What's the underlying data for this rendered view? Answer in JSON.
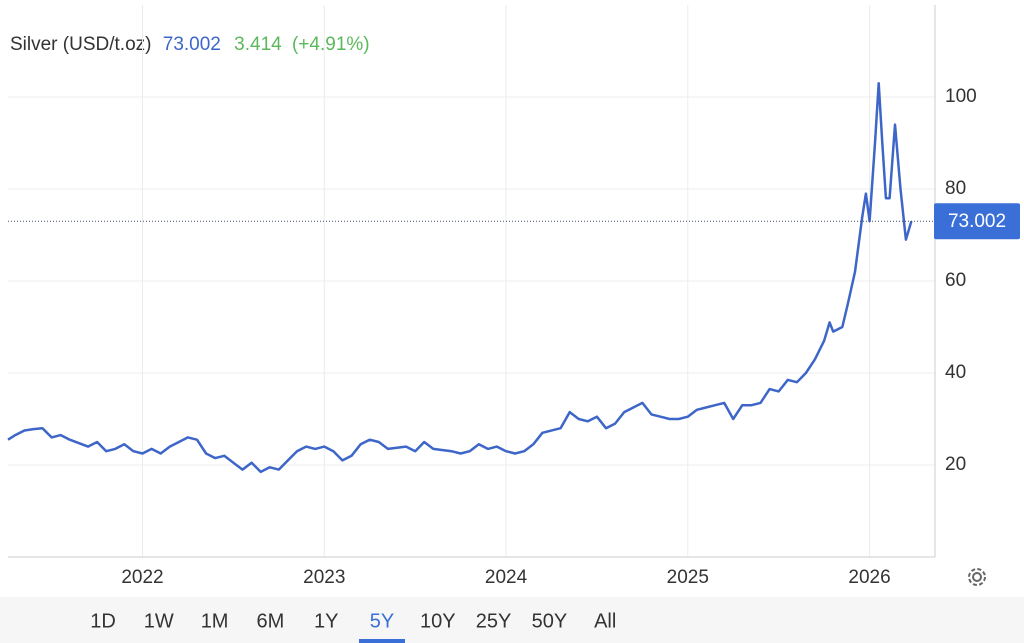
{
  "chart_data": {
    "type": "line",
    "title": "Silver (USD/t.oz)",
    "price": 73.002,
    "change": 3.414,
    "change_pct": "(+4.91%)",
    "color": "#3d66c8",
    "x": [
      2021.26,
      2021.3,
      2021.35,
      2021.4,
      2021.45,
      2021.5,
      2021.55,
      2021.6,
      2021.7,
      2021.75,
      2021.8,
      2021.85,
      2021.9,
      2021.95,
      2022.0,
      2022.05,
      2022.1,
      2022.15,
      2022.2,
      2022.25,
      2022.3,
      2022.35,
      2022.4,
      2022.45,
      2022.5,
      2022.55,
      2022.6,
      2022.65,
      2022.7,
      2022.75,
      2022.8,
      2022.85,
      2022.9,
      2022.95,
      2023.0,
      2023.05,
      2023.1,
      2023.15,
      2023.2,
      2023.25,
      2023.3,
      2023.35,
      2023.45,
      2023.5,
      2023.55,
      2023.6,
      2023.7,
      2023.75,
      2023.8,
      2023.85,
      2023.9,
      2023.95,
      2024.0,
      2024.05,
      2024.1,
      2024.15,
      2024.2,
      2024.3,
      2024.35,
      2024.4,
      2024.45,
      2024.5,
      2024.55,
      2024.6,
      2024.65,
      2024.7,
      2024.75,
      2024.8,
      2024.85,
      2024.9,
      2024.95,
      2025.0,
      2025.05,
      2025.1,
      2025.15,
      2025.2,
      2025.25,
      2025.3,
      2025.35,
      2025.4,
      2025.45,
      2025.5,
      2025.55,
      2025.6,
      2025.65,
      2025.7,
      2025.75,
      2025.78,
      2025.8,
      2025.85,
      2025.88,
      2025.92,
      2025.96,
      2025.98,
      2026.0,
      2026.03,
      2026.05,
      2026.07,
      2026.09,
      2026.11,
      2026.14,
      2026.17,
      2026.2,
      2026.23
    ],
    "values": [
      25.5,
      26.5,
      27.5,
      27.8,
      28,
      26,
      26.5,
      25.5,
      24,
      25,
      23,
      23.5,
      24.5,
      23,
      22.5,
      23.5,
      22.5,
      24,
      25,
      26,
      25.5,
      22.5,
      21.5,
      22,
      20.5,
      19,
      20.5,
      18.5,
      19.5,
      19,
      21,
      23,
      24,
      23.5,
      24,
      23,
      21,
      22,
      24.5,
      25.5,
      25,
      23.5,
      24,
      23,
      25,
      23.5,
      23,
      22.5,
      23,
      24.5,
      23.5,
      24,
      23,
      22.5,
      23,
      24.5,
      27,
      28,
      31.5,
      30,
      29.5,
      30.5,
      28,
      29,
      31.5,
      32.5,
      33.5,
      31,
      30.5,
      30,
      30,
      30.5,
      32,
      32.5,
      33,
      33.5,
      30,
      33,
      33,
      33.5,
      36.5,
      36,
      38.5,
      38,
      40,
      43,
      47,
      51,
      49,
      50,
      55,
      62,
      74,
      79,
      73,
      90,
      103,
      90,
      78,
      78,
      94,
      80,
      69,
      73.002
    ],
    "xlim": [
      2021.26,
      2026.36
    ],
    "xticks": [
      2022,
      2023,
      2024,
      2025,
      2026
    ],
    "ylim": [
      0,
      120
    ],
    "yticks": [
      20,
      40,
      60,
      80,
      100
    ],
    "grid": true
  },
  "range_buttons": [
    "1D",
    "1W",
    "1M",
    "6M",
    "1Y",
    "5Y",
    "10Y",
    "25Y",
    "50Y",
    "All"
  ],
  "selected_range": "5Y"
}
